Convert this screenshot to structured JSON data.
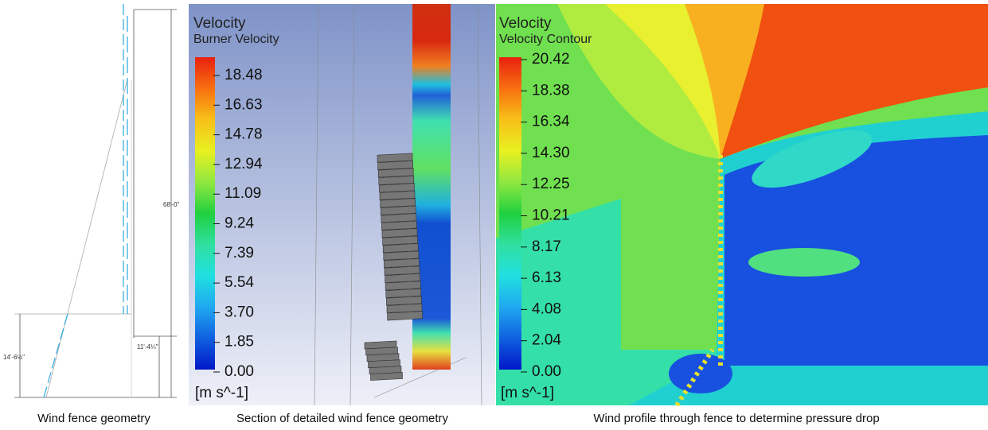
{
  "panels": [
    {
      "caption": "Wind fence geometry",
      "dimensions": [
        "68'-0\"",
        "14'-6½\"",
        "11'-4¼\""
      ]
    },
    {
      "caption": "Section of detailed wind fence geometry",
      "legend": {
        "title": "Velocity",
        "subtitle": "Burner Velocity",
        "ticks": [
          "18.48",
          "16.63",
          "14.78",
          "12.94",
          "11.09",
          "9.24",
          "7.39",
          "5.54",
          "3.70",
          "1.85",
          "0.00"
        ],
        "units": "[m s^-1]"
      }
    },
    {
      "caption": "Wind profile through fence to determine pressure drop",
      "legend": {
        "title": "Velocity",
        "subtitle": "Velocity Contour",
        "ticks": [
          "20.42",
          "18.38",
          "16.34",
          "14.30",
          "12.25",
          "10.21",
          "8.17",
          "6.13",
          "4.08",
          "2.04",
          "0.00"
        ],
        "units": "[m s^-1]"
      }
    }
  ]
}
